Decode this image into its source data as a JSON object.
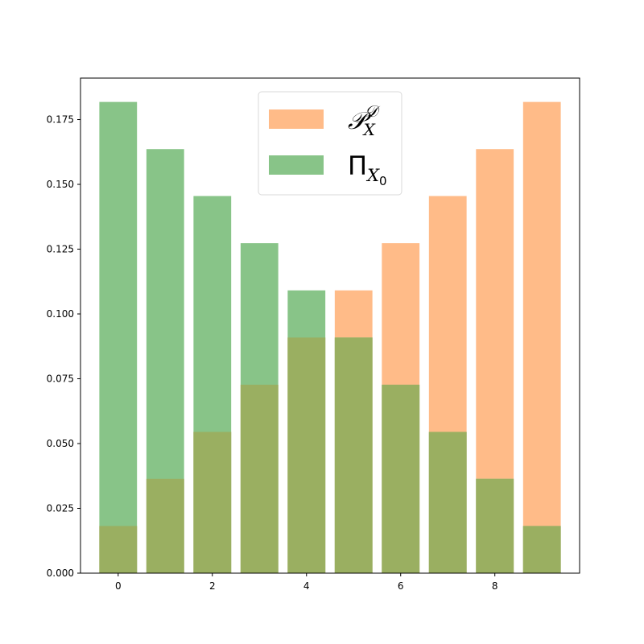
{
  "chart_data": {
    "type": "bar",
    "x": [
      0,
      1,
      2,
      3,
      4,
      5,
      6,
      7,
      8,
      9
    ],
    "xticks": [
      "0",
      "2",
      "4",
      "6",
      "8"
    ],
    "yticks": [
      "0.000",
      "0.025",
      "0.050",
      "0.075",
      "0.100",
      "0.125",
      "0.150",
      "0.175"
    ],
    "ylim": [
      0,
      0.191
    ],
    "xlim": [
      -0.8,
      9.8
    ],
    "grid": false,
    "legend_position": "top-center",
    "series": [
      {
        "name": "P_X^D",
        "color": "#ffbb88",
        "values": [
          0.0182,
          0.0364,
          0.0545,
          0.0727,
          0.0909,
          0.1091,
          0.1273,
          0.1455,
          0.1636,
          0.1818
        ]
      },
      {
        "name": "Π_X0",
        "color": "#88c488",
        "values": [
          0.1818,
          0.1636,
          0.1455,
          0.1273,
          0.1091,
          0.0909,
          0.0727,
          0.0545,
          0.0364,
          0.0182
        ]
      }
    ],
    "overlap_color": "#9aaf61"
  },
  "legend": {
    "item0": {
      "main": "𝒫",
      "sub": "X",
      "sup": "𝒟"
    },
    "item1": {
      "main": "Π",
      "sub": "X",
      "subsub": "0"
    }
  }
}
